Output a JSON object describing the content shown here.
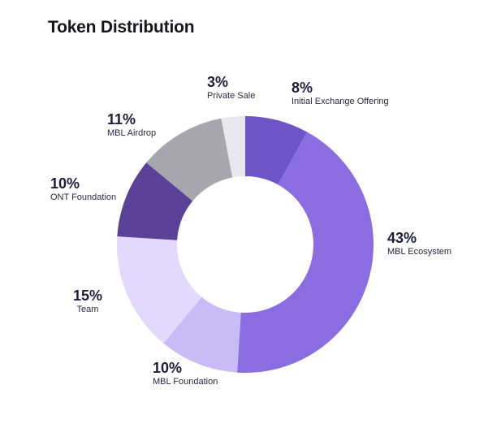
{
  "title": "Token Distribution",
  "chart_data": {
    "type": "pie",
    "donut": true,
    "title": "Token Distribution",
    "categories": [
      "Initial Exchange Offering",
      "MBL Ecosystem",
      "MBL Foundation",
      "Team",
      "ONT Foundation",
      "MBL Airdrop",
      "Private Sale"
    ],
    "values": [
      8,
      43,
      10,
      15,
      10,
      11,
      3
    ],
    "labels": [
      "8%",
      "43%",
      "10%",
      "15%",
      "10%",
      "11%",
      "3%"
    ],
    "colors": [
      "#6e55c5",
      "#8a6de1",
      "#c9bbf6",
      "#e2dafd",
      "#5a4298",
      "#a7a6ae",
      "#e8e8ec"
    ]
  }
}
